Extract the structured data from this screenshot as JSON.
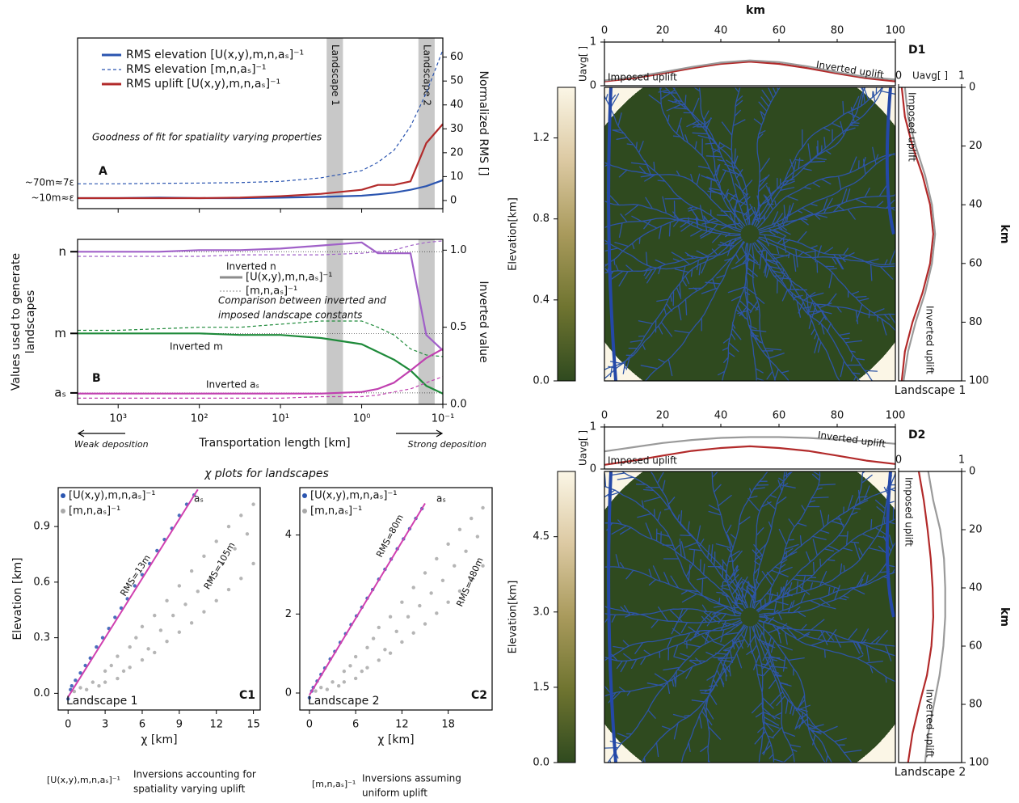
{
  "captions": {
    "chi_title": "χ plots for landscapes",
    "notes": [
      {
        "symbol": "[U(x,y),m,n,aₛ]⁻¹",
        "text": [
          "Inversions accounting for",
          "spatiality varying uplift"
        ]
      },
      {
        "symbol": "[m,n,aₛ]⁻¹",
        "text": [
          "Inversions assuming",
          "uniform uplift"
        ]
      }
    ]
  },
  "chart_data": [
    {
      "type": "line",
      "title": "A",
      "note": "Goodness of fit for spatiality varying properties",
      "ylabel": "Normalized RMS []",
      "annotations": [
        "~70m≈7ε",
        "~10m≈ε"
      ],
      "xlog": true,
      "xlim": [
        3162,
        0.1
      ],
      "ylim": [
        -3.4,
        68
      ],
      "yticks": [
        0,
        10,
        20,
        30,
        40,
        50,
        60
      ],
      "bands": [
        {
          "label": "Landscape 1",
          "range": [
            2.7,
            1.7
          ]
        },
        {
          "label": "Landscape 2",
          "range": [
            0.2,
            0.126
          ]
        }
      ],
      "x": [
        3162,
        1000,
        316,
        100,
        31.6,
        10,
        3.16,
        1,
        0.63,
        0.4,
        0.25,
        0.16,
        0.1
      ],
      "series": [
        {
          "name": "RMS elevation [U(x,y),m,n,aₛ]⁻¹",
          "color": "#2b55b0",
          "values": [
            1,
            1,
            1.2,
            1,
            1,
            1.2,
            1.5,
            2,
            2.6,
            3.3,
            4.5,
            6,
            8.5
          ]
        },
        {
          "name": "RMS elevation [m,n,aₛ]⁻¹",
          "color": "#2b55b0",
          "dash": true,
          "values": [
            7,
            7,
            7.2,
            7.3,
            7.5,
            8,
            9.5,
            12.5,
            16,
            21,
            31,
            45,
            63
          ]
        },
        {
          "name": "RMS uplift [U(x,y),m,n,aₛ]⁻¹",
          "color": "#b22a2a",
          "values": [
            1,
            1,
            1,
            1,
            1.2,
            1.8,
            2.8,
            4.5,
            6.5,
            6.5,
            8,
            24,
            32
          ]
        }
      ]
    },
    {
      "type": "line",
      "title": "B",
      "note": [
        "Comparison between inverted and",
        "imposed landscape constants"
      ],
      "ylabel": "Inverted value",
      "y2label": [
        "Values used to generate",
        "landscapes"
      ],
      "xlabel": "Transportation length [km]",
      "annotations": [
        "Weak deposition",
        "Strong deposition"
      ],
      "xlog": true,
      "xlim": [
        3162,
        0.1
      ],
      "xticks": [
        {
          "value": 1000,
          "label": "10³"
        },
        {
          "value": 100,
          "label": "10²"
        },
        {
          "value": 10,
          "label": "10¹"
        },
        {
          "value": 1,
          "label": "10⁰"
        },
        {
          "value": 0.1,
          "label": "10⁻¹"
        }
      ],
      "ylim": [
        0,
        1.07
      ],
      "yticks": [
        {
          "value": 0,
          "label": "0.0"
        },
        0.5,
        {
          "value": 1,
          "label": "1.0"
        }
      ],
      "y2lim": [
        0,
        1.07
      ],
      "y2ticks": [
        {
          "value": 0.99,
          "label": "n"
        },
        {
          "value": 0.46,
          "label": "m"
        },
        {
          "value": 0.074,
          "label": "aₛ"
        }
      ],
      "grid": true,
      "legend": [
        {
          "label": "[U(x,y),m,n,aₛ]⁻¹",
          "color": "#8c8c8c",
          "dash": false
        },
        {
          "label": "[m,n,aₛ]⁻¹",
          "color": "#8c8c8c",
          "dash": true
        }
      ],
      "x": [
        3162,
        1000,
        316,
        100,
        31.6,
        10,
        3.16,
        1,
        0.63,
        0.4,
        0.25,
        0.16,
        0.1
      ],
      "series": [
        {
          "name": "Inverted n",
          "color": "#a060c8",
          "values": [
            0.99,
            0.99,
            0.99,
            1.0,
            1.0,
            1.01,
            1.03,
            1.05,
            0.98,
            0.98,
            0.98,
            0.45,
            0.35
          ]
        },
        {
          "color": "#a060c8",
          "dash": true,
          "values": [
            0.96,
            0.96,
            0.96,
            0.96,
            0.97,
            0.97,
            0.97,
            0.98,
            0.99,
            1.0,
            1.03,
            1.05,
            1.06
          ]
        },
        {
          "name": "Inverted m",
          "color": "#1e8a3a",
          "values": [
            0.46,
            0.46,
            0.46,
            0.46,
            0.45,
            0.45,
            0.43,
            0.39,
            0.34,
            0.29,
            0.22,
            0.12,
            0.07
          ]
        },
        {
          "color": "#1e8a3a",
          "dash": true,
          "values": [
            0.48,
            0.48,
            0.49,
            0.5,
            0.5,
            0.52,
            0.54,
            0.54,
            0.5,
            0.45,
            0.36,
            0.32,
            0.31
          ]
        },
        {
          "name": "Inverted aₛ",
          "color": "#c040b0",
          "values": [
            0.07,
            0.07,
            0.07,
            0.07,
            0.07,
            0.07,
            0.07,
            0.08,
            0.1,
            0.14,
            0.22,
            0.3,
            0.36
          ]
        },
        {
          "color": "#c040b0",
          "dash": true,
          "values": [
            0.04,
            0.04,
            0.04,
            0.04,
            0.04,
            0.04,
            0.05,
            0.05,
            0.06,
            0.08,
            0.1,
            0.14,
            0.18
          ]
        }
      ]
    },
    {
      "type": "scatter",
      "title": "C1",
      "xlabel": "χ [km]",
      "ylabel": "Elevation [km]",
      "annotations": [
        "RMS=13m",
        "RMS=105m",
        "Landscape 1"
      ],
      "xlim": [
        -0.8,
        15.55
      ],
      "xticks": [
        0,
        3,
        6,
        9,
        12,
        15
      ],
      "ylim": [
        -0.09,
        1.11
      ],
      "yticks": [
        {
          "value": 0,
          "label": "0.0"
        },
        0.3,
        0.6,
        0.9
      ],
      "series": [
        {
          "name": "[U(x,y),m,n,aₛ]⁻¹",
          "color": "#2b55b0",
          "x": [
            0,
            0.2,
            0.3,
            0.6,
            1,
            1.4,
            1.8,
            2.3,
            2.8,
            3.3,
            3.8,
            4.3,
            4.8,
            5.4,
            6,
            6.6,
            7.2,
            7.8,
            8.4,
            9,
            9.6,
            10.2
          ],
          "values": [
            -0.03,
            0.02,
            0.04,
            0.07,
            0.11,
            0.15,
            0.19,
            0.25,
            0.3,
            0.35,
            0.41,
            0.46,
            0.51,
            0.58,
            0.64,
            0.7,
            0.77,
            0.83,
            0.89,
            0.96,
            1.02,
            1.07
          ]
        },
        {
          "name": "[m,n,aₛ]⁻¹",
          "color": "#a8a8a8",
          "x": [
            0.5,
            1,
            1.5,
            2,
            2.5,
            3,
            3,
            3.5,
            4,
            4,
            4.5,
            5,
            5,
            5.5,
            6,
            6,
            6.5,
            7,
            7,
            7.5,
            8,
            8,
            8.5,
            9,
            9,
            9.5,
            10,
            10,
            10.5,
            11,
            11,
            11.5,
            12,
            12,
            12.5,
            13,
            13,
            13.5,
            14,
            14,
            14.5,
            15,
            15
          ],
          "values": [
            0.01,
            0.03,
            0.02,
            0.06,
            0.04,
            0.12,
            0.06,
            0.15,
            0.08,
            0.2,
            0.12,
            0.25,
            0.14,
            0.3,
            0.18,
            0.36,
            0.24,
            0.42,
            0.22,
            0.34,
            0.5,
            0.28,
            0.42,
            0.58,
            0.33,
            0.48,
            0.66,
            0.38,
            0.55,
            0.74,
            0.44,
            0.62,
            0.82,
            0.5,
            0.7,
            0.9,
            0.56,
            0.78,
            0.96,
            0.62,
            0.86,
            1.02,
            0.7
          ]
        },
        {
          "name": "aₛ",
          "color": "#d040b0",
          "mode": "line",
          "x": [
            0,
            10.5
          ],
          "values": [
            -0.02,
            1.1
          ]
        }
      ]
    },
    {
      "type": "scatter",
      "title": "C2",
      "xlabel": "χ [km]",
      "annotations": [
        "RMS=80m",
        "RMS=480m",
        "Landscape 2"
      ],
      "xlim": [
        -1.25,
        23.7
      ],
      "xticks": [
        0,
        6,
        12,
        18
      ],
      "ylim": [
        -0.43,
        5.2
      ],
      "yticks": [
        0,
        2,
        4
      ],
      "series": [
        {
          "name": "[U(x,y),m,n,aₛ]⁻¹",
          "color": "#2b55b0",
          "x": [
            0,
            0.3,
            0.5,
            1,
            1.5,
            2,
            2.7,
            3.3,
            4,
            4.7,
            5.4,
            6.1,
            6.8,
            7.5,
            8.2,
            9,
            9.8,
            10.6,
            11.4,
            12.2,
            13,
            13.8,
            14.6
          ],
          "values": [
            -0.12,
            0.05,
            0.14,
            0.3,
            0.47,
            0.63,
            0.86,
            1.05,
            1.28,
            1.5,
            1.73,
            1.95,
            2.17,
            2.4,
            2.62,
            2.88,
            3.13,
            3.39,
            3.65,
            3.9,
            4.16,
            4.42,
            4.67
          ]
        },
        {
          "name": "[m,n,aₛ]⁻¹",
          "color": "#a8a8a8",
          "x": [
            0.8,
            1.5,
            2.3,
            3,
            3.8,
            4.5,
            4.5,
            5.3,
            6,
            6,
            6.8,
            7.5,
            7.5,
            8.3,
            9,
            9,
            9.8,
            10.5,
            10.5,
            11.3,
            12,
            12,
            12.8,
            13.5,
            13.5,
            14.3,
            15,
            15,
            15.8,
            16.5,
            16.5,
            17.3,
            18,
            18,
            18.8,
            19.5,
            19.5,
            20.3,
            21,
            21,
            21.8,
            22.5,
            22.5
          ],
          "values": [
            0.05,
            0.14,
            0.09,
            0.28,
            0.18,
            0.55,
            0.28,
            0.69,
            0.37,
            0.92,
            0.55,
            1.15,
            0.64,
            1.38,
            0.83,
            1.66,
            1.1,
            1.93,
            1.01,
            1.56,
            2.3,
            1.29,
            1.93,
            2.67,
            1.52,
            2.21,
            3.04,
            1.75,
            2.53,
            3.4,
            2.02,
            2.85,
            3.77,
            2.3,
            3.22,
            4.14,
            2.58,
            3.59,
            4.42,
            2.85,
            3.96,
            4.69,
            3.22
          ]
        },
        {
          "name": "aₛ",
          "color": "#d040b0",
          "mode": "line",
          "x": [
            0,
            15
          ],
          "values": [
            -0.05,
            4.8
          ]
        }
      ]
    },
    {
      "type": "line",
      "title": "D1",
      "xlabel": "km",
      "ylabel": "Uavg[ ]",
      "xlim": [
        0,
        100
      ],
      "xticks": [
        0,
        20,
        40,
        60,
        80,
        100
      ],
      "ylim": [
        0,
        1
      ],
      "yticks": [
        0,
        1
      ],
      "x": [
        0,
        10,
        20,
        30,
        40,
        50,
        60,
        70,
        80,
        90,
        100
      ],
      "series": [
        {
          "name": "Imposed uplift",
          "color": "#b22a2a",
          "values": [
            0.1,
            0.17,
            0.28,
            0.4,
            0.5,
            0.55,
            0.5,
            0.4,
            0.28,
            0.17,
            0.1
          ]
        },
        {
          "name": "Inverted uplift",
          "color": "#9a9a9a",
          "values": [
            0.12,
            0.2,
            0.31,
            0.43,
            0.53,
            0.58,
            0.54,
            0.44,
            0.31,
            0.2,
            0.14
          ]
        }
      ]
    },
    {
      "type": "line",
      "orientation": "horizontal",
      "note": "Landscape 1",
      "xlabel": "Uavg[ ]",
      "ylabel": "km",
      "xlim": [
        0,
        1
      ],
      "xticks": [
        0,
        1
      ],
      "ylim": [
        100,
        0
      ],
      "yticks": [
        0,
        20,
        40,
        60,
        80,
        100
      ],
      "y": [
        0,
        10,
        20,
        30,
        40,
        50,
        60,
        70,
        80,
        90,
        100
      ],
      "series": [
        {
          "name": "Imposed uplift",
          "color": "#b22a2a",
          "values": [
            0.05,
            0.1,
            0.22,
            0.38,
            0.5,
            0.55,
            0.5,
            0.38,
            0.22,
            0.1,
            0.05
          ]
        },
        {
          "name": "Inverted uplift",
          "color": "#9a9a9a",
          "values": [
            0.1,
            0.15,
            0.27,
            0.42,
            0.53,
            0.58,
            0.53,
            0.42,
            0.27,
            0.15,
            0.08
          ]
        }
      ]
    },
    {
      "type": "heatmap",
      "colorbar": {
        "label": "Elevation[km]",
        "lim": [
          0,
          1.45
        ],
        "ticks": [
          {
            "value": 0,
            "label": "0.0"
          },
          0.4,
          0.8,
          1.2
        ],
        "colors": [
          "#2f4a1f",
          "#6f7430",
          "#a99a5c",
          "#dcc9a2",
          "#fbf6e6"
        ]
      }
    },
    {
      "type": "line",
      "title": "D2",
      "ylabel": "Uavg[ ]",
      "xlim": [
        0,
        100
      ],
      "xticks": [
        0,
        20,
        40,
        60,
        80,
        100
      ],
      "ylim": [
        0,
        1
      ],
      "yticks": [
        0,
        1
      ],
      "x": [
        0,
        10,
        20,
        30,
        40,
        50,
        60,
        70,
        80,
        90,
        100
      ],
      "series": [
        {
          "name": "Imposed uplift",
          "color": "#b22a2a",
          "values": [
            0.1,
            0.2,
            0.32,
            0.43,
            0.5,
            0.54,
            0.5,
            0.43,
            0.32,
            0.2,
            0.12
          ]
        },
        {
          "name": "Inverted uplift",
          "color": "#9a9a9a",
          "values": [
            0.42,
            0.52,
            0.62,
            0.69,
            0.74,
            0.76,
            0.76,
            0.74,
            0.7,
            0.66,
            0.6
          ]
        }
      ]
    },
    {
      "type": "line",
      "orientation": "horizontal",
      "note": "Landscape 2",
      "ylabel": "km",
      "xlim": [
        0,
        1
      ],
      "xticks": [
        0,
        1
      ],
      "ylim": [
        100,
        0
      ],
      "yticks": [
        0,
        20,
        40,
        60,
        80,
        100
      ],
      "y": [
        0,
        10,
        20,
        30,
        40,
        50,
        60,
        70,
        80,
        90,
        100
      ],
      "series": [
        {
          "name": "Imposed uplift",
          "color": "#b22a2a",
          "values": [
            0.32,
            0.4,
            0.46,
            0.51,
            0.54,
            0.55,
            0.52,
            0.45,
            0.33,
            0.22,
            0.15
          ]
        },
        {
          "name": "Inverted uplift",
          "color": "#9a9a9a",
          "values": [
            0.47,
            0.55,
            0.66,
            0.72,
            0.74,
            0.74,
            0.71,
            0.65,
            0.56,
            0.47,
            0.42
          ]
        }
      ]
    },
    {
      "type": "heatmap",
      "colorbar": {
        "label": "Elevation[km]",
        "lim": [
          0,
          5.8
        ],
        "ticks": [
          {
            "value": 0,
            "label": "0.0"
          },
          1.5,
          {
            "value": 3,
            "label": "3.0"
          },
          4.5
        ],
        "colors": [
          "#2f4a1f",
          "#6f7430",
          "#a99a5c",
          "#dcc9a2",
          "#fbf6e6"
        ]
      }
    }
  ]
}
